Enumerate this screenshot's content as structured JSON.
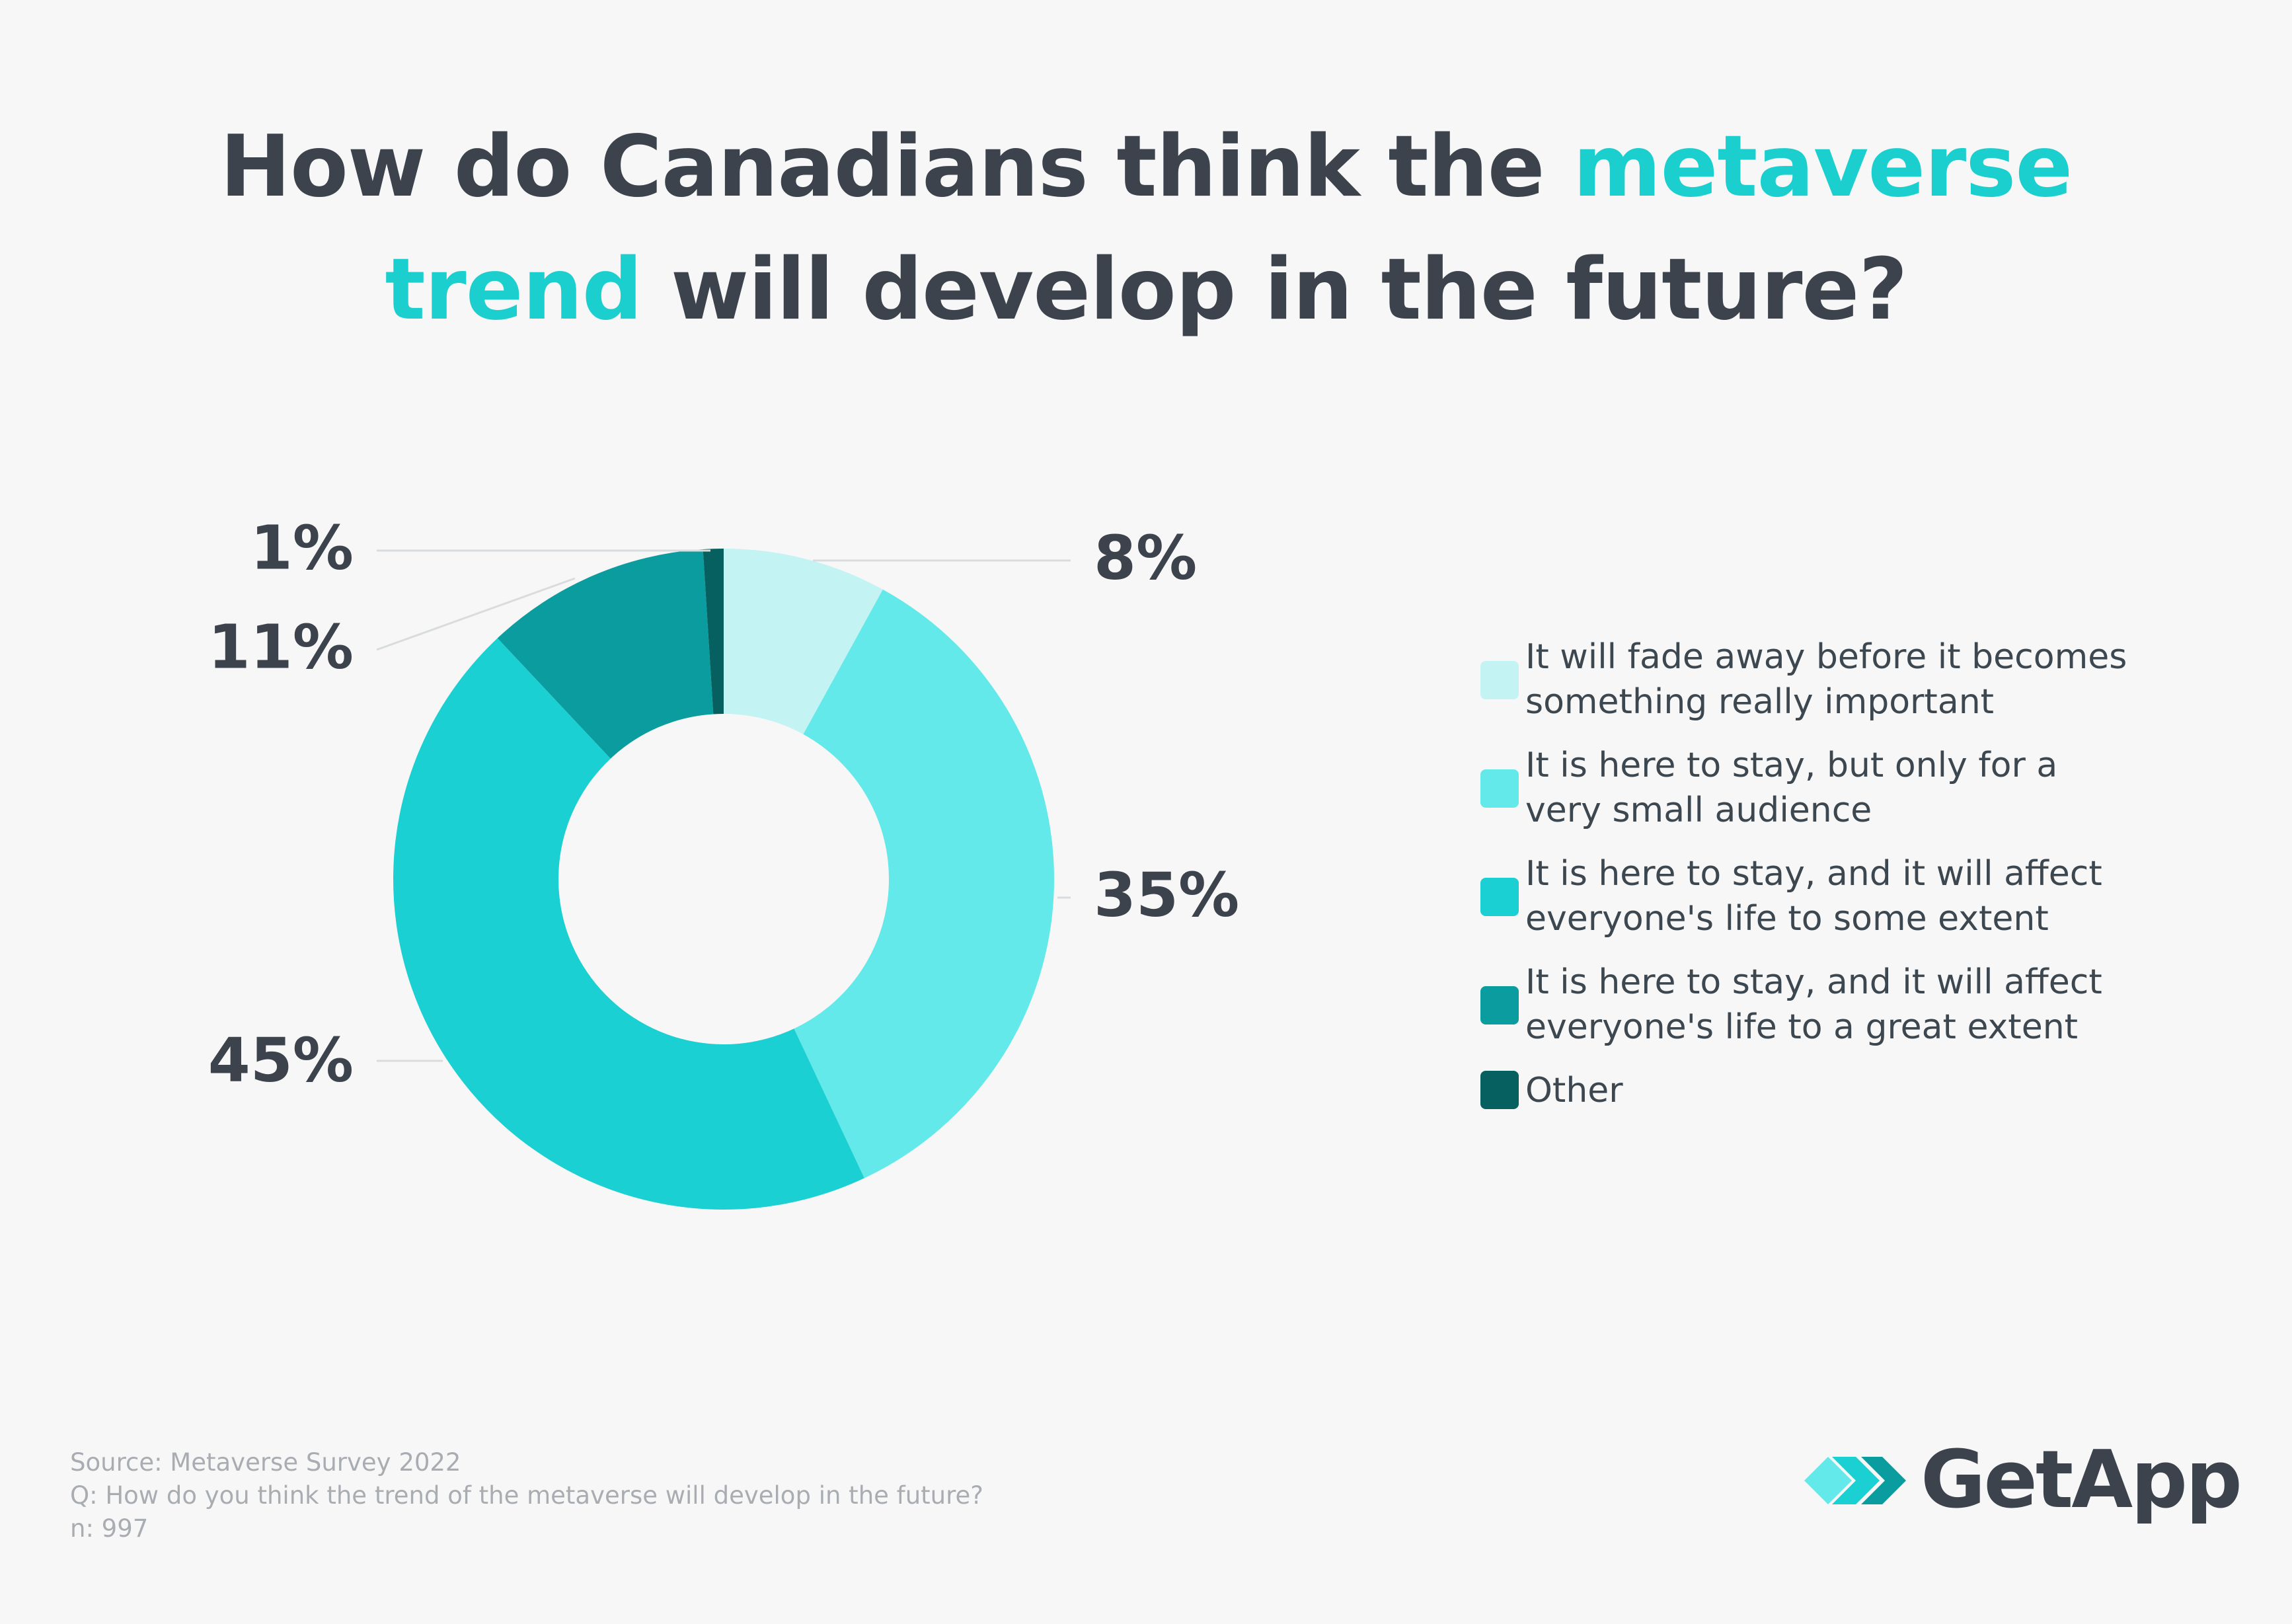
{
  "title": {
    "part1": "How do Canadians think the ",
    "highlight1": "metaverse",
    "highlight2": "trend",
    "part2": " will develop in the future?"
  },
  "chart_data": {
    "type": "pie",
    "subtype": "donut",
    "title": "How do Canadians think the metaverse trend will develop in the future?",
    "legend_position": "right",
    "categories": [
      "It will fade away before it becomes something really important",
      "It is here to stay, but only for a very small audience",
      "It is here to stay, and it will affect everyone's life to some extent",
      "It is here to stay, and it will affect everyone's life to a great extent",
      "Other"
    ],
    "values": [
      8,
      35,
      45,
      11,
      1
    ],
    "labels": [
      "8%",
      "35%",
      "45%",
      "11%",
      "1%"
    ],
    "colors": [
      "#c3f3f2",
      "#63e9e9",
      "#1ad0d2",
      "#0a9c9e",
      "#05605f"
    ]
  },
  "legend": {
    "items": [
      {
        "line1": "It will fade away before it becomes",
        "line2": "something really important"
      },
      {
        "line1": "It is here to stay, but only for a",
        "line2": "very small audience"
      },
      {
        "line1": "It is here to stay, and it will affect",
        "line2": "everyone's life to some extent"
      },
      {
        "line1": "It is here to stay, and it will affect",
        "line2": "everyone's life to a great extent"
      },
      {
        "line1": "Other",
        "line2": ""
      }
    ]
  },
  "footer": {
    "source": "Source: Metaverse Survey 2022",
    "question": "Q: How do you think the trend of the metaverse will develop in the future?",
    "n": "n: 997"
  },
  "brand": {
    "name": "GetApp"
  }
}
